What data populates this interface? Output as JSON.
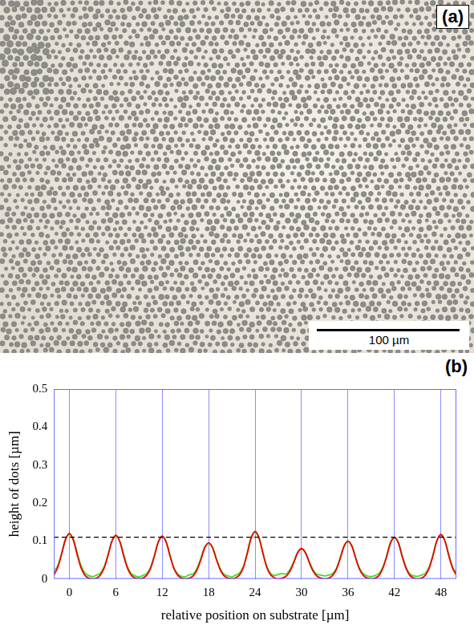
{
  "panel_labels": [
    "(a)",
    "(b)"
  ],
  "image": {
    "scale_bar": "100 µm"
  },
  "chart_data": {
    "type": "line",
    "x_label": "relative position on substrate [µm]",
    "y_label": "height of dots [µm]",
    "xlim": [
      -2,
      50
    ],
    "xticks": [
      0,
      6,
      12,
      18,
      24,
      30,
      36,
      42,
      48
    ],
    "ylim": [
      0,
      0.5
    ],
    "yticks": [
      0,
      0.1,
      0.2,
      0.3,
      0.4,
      0.5
    ],
    "grid": "x",
    "x": [
      -2,
      -1.5,
      -1,
      -0.5,
      0,
      0.5,
      1,
      1.5,
      2,
      2.5,
      3,
      3.5,
      4,
      4.5,
      5,
      5.5,
      6,
      6.5,
      7,
      7.5,
      8,
      8.5,
      9,
      9.5,
      10,
      10.5,
      11,
      11.5,
      12,
      12.5,
      13,
      13.5,
      14,
      14.5,
      15,
      15.5,
      16,
      16.5,
      17,
      17.5,
      18,
      18.5,
      19,
      19.5,
      20,
      20.5,
      21,
      21.5,
      22,
      22.5,
      23,
      23.5,
      24,
      24.5,
      25,
      25.5,
      26,
      26.5,
      27,
      27.5,
      28,
      28.5,
      29,
      29.5,
      30,
      30.5,
      31,
      31.5,
      32,
      32.5,
      33,
      33.5,
      34,
      34.5,
      35,
      35.5,
      36,
      36.5,
      37,
      37.5,
      38,
      38.5,
      39,
      39.5,
      40,
      40.5,
      41,
      41.5,
      42,
      42.5,
      43,
      43.5,
      44,
      44.5,
      45,
      45.5,
      46,
      46.5,
      47,
      47.5,
      48,
      48.5,
      49,
      49.5,
      50
    ],
    "series": [
      {
        "color": "#44dd22",
        "marker": "none",
        "line_style": "solid",
        "values": [
          0.02,
          0.035,
          0.068,
          0.105,
          0.118,
          0.106,
          0.07,
          0.036,
          0.016,
          0.009,
          0.006,
          0.01,
          0.015,
          0.032,
          0.064,
          0.1,
          0.113,
          0.101,
          0.066,
          0.033,
          0.014,
          0.008,
          0.005,
          0.009,
          0.014,
          0.031,
          0.063,
          0.099,
          0.111,
          0.099,
          0.064,
          0.03,
          0.013,
          0.007,
          0.006,
          0.011,
          0.013,
          0.028,
          0.055,
          0.085,
          0.093,
          0.084,
          0.054,
          0.027,
          0.012,
          0.008,
          0.005,
          0.01,
          0.016,
          0.034,
          0.07,
          0.11,
          0.123,
          0.109,
          0.07,
          0.034,
          0.015,
          0.009,
          0.012,
          0.014,
          0.013,
          0.025,
          0.046,
          0.07,
          0.078,
          0.07,
          0.046,
          0.024,
          0.012,
          0.01,
          0.008,
          0.01,
          0.014,
          0.028,
          0.056,
          0.088,
          0.098,
          0.088,
          0.056,
          0.028,
          0.013,
          0.008,
          0.006,
          0.009,
          0.014,
          0.031,
          0.061,
          0.097,
          0.108,
          0.097,
          0.062,
          0.031,
          0.013,
          0.008,
          0.007,
          0.01,
          0.015,
          0.032,
          0.065,
          0.103,
          0.115,
          0.102,
          0.066,
          0.032,
          0.014
        ]
      },
      {
        "color": "#ee0000",
        "marker": "none",
        "line_style": "solid",
        "values": [
          0.01,
          0.03,
          0.065,
          0.103,
          0.12,
          0.103,
          0.065,
          0.03,
          0.01,
          0.002,
          0,
          0.002,
          0.01,
          0.029,
          0.062,
          0.099,
          0.115,
          0.099,
          0.062,
          0.029,
          0.01,
          0.002,
          0,
          0.002,
          0.01,
          0.028,
          0.061,
          0.097,
          0.113,
          0.097,
          0.061,
          0.028,
          0.01,
          0.002,
          0,
          0.002,
          0.008,
          0.024,
          0.051,
          0.082,
          0.095,
          0.082,
          0.051,
          0.024,
          0.008,
          0.002,
          0,
          0.003,
          0.011,
          0.031,
          0.068,
          0.108,
          0.125,
          0.108,
          0.068,
          0.031,
          0.011,
          0.003,
          0,
          0.002,
          0.007,
          0.02,
          0.043,
          0.069,
          0.08,
          0.069,
          0.043,
          0.02,
          0.007,
          0.002,
          0,
          0.002,
          0.009,
          0.025,
          0.054,
          0.086,
          0.1,
          0.086,
          0.054,
          0.025,
          0.009,
          0.002,
          0,
          0.002,
          0.009,
          0.028,
          0.059,
          0.095,
          0.11,
          0.095,
          0.059,
          0.028,
          0.009,
          0.002,
          0,
          0.002,
          0.01,
          0.029,
          0.063,
          0.101,
          0.117,
          0.101,
          0.063,
          0.029,
          0.01
        ]
      },
      {
        "color": "#000000",
        "marker": "none",
        "line_style": "dashed",
        "x": [
          -2,
          50
        ],
        "values": [
          0.11,
          0.11
        ]
      }
    ]
  }
}
